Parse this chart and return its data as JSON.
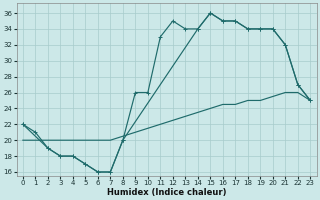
{
  "xlabel": "Humidex (Indice chaleur)",
  "bg_color": "#cce8e8",
  "line_color": "#1f6b6b",
  "grid_color": "#a8cccc",
  "xlim": [
    -0.5,
    23.5
  ],
  "ylim": [
    15.5,
    37.2
  ],
  "xticks": [
    0,
    1,
    2,
    3,
    4,
    5,
    6,
    7,
    8,
    9,
    10,
    11,
    12,
    13,
    14,
    15,
    16,
    17,
    18,
    19,
    20,
    21,
    22,
    23
  ],
  "yticks": [
    16,
    18,
    20,
    22,
    24,
    26,
    28,
    30,
    32,
    34,
    36
  ],
  "line1_x": [
    0,
    1,
    2,
    3,
    4,
    5,
    6,
    7,
    8,
    9,
    10,
    11,
    12,
    13,
    14,
    15,
    16,
    17,
    18,
    19,
    20,
    21,
    22,
    23
  ],
  "line1_y": [
    22,
    21,
    19,
    18,
    18,
    17,
    16,
    16,
    20,
    26,
    26,
    33,
    35,
    34,
    34,
    36,
    35,
    35,
    34,
    34,
    34,
    32,
    27,
    25
  ],
  "line2_x": [
    0,
    2,
    3,
    4,
    5,
    6,
    7,
    8,
    14,
    15,
    16,
    17,
    18,
    19,
    20,
    21,
    22,
    23
  ],
  "line2_y": [
    22,
    19,
    18,
    18,
    17,
    16,
    16,
    20,
    34,
    36,
    35,
    35,
    34,
    34,
    34,
    32,
    27,
    25
  ],
  "line3_x": [
    0,
    1,
    2,
    3,
    4,
    5,
    6,
    7,
    8,
    9,
    10,
    11,
    12,
    13,
    14,
    15,
    16,
    17,
    18,
    19,
    20,
    21,
    22,
    23
  ],
  "line3_y": [
    20,
    20,
    20,
    20,
    20,
    20,
    20,
    20,
    20.5,
    21,
    21.5,
    22,
    22.5,
    23,
    23.5,
    24,
    24.5,
    24.5,
    25,
    25,
    25.5,
    26,
    26,
    25
  ]
}
